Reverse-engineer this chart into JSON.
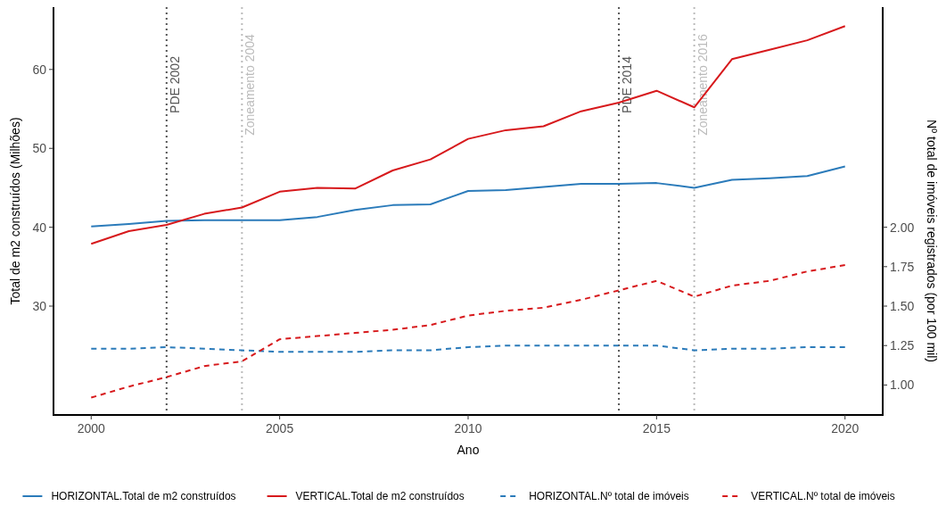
{
  "chart_data": {
    "type": "line",
    "xlabel": "Ano",
    "ylabel": "Total de m2 construídos (Milhões)",
    "y2label": "Nº total de imóveis registrados (por 100 mil)",
    "x": [
      2000,
      2001,
      2002,
      2003,
      2004,
      2005,
      2006,
      2007,
      2008,
      2009,
      2010,
      2011,
      2012,
      2013,
      2014,
      2015,
      2016,
      2017,
      2018,
      2019,
      2020
    ],
    "xlim": [
      1999,
      2021
    ],
    "xticks": [
      2000,
      2005,
      2010,
      2015,
      2020
    ],
    "ylim": [
      16.2,
      67.9
    ],
    "yticks": [
      30,
      40,
      50,
      60
    ],
    "y2lim": [
      0.81,
      3.395
    ],
    "y2ticks": [
      {
        "value": 1,
        "label": "1.00"
      },
      {
        "value": 1.25,
        "label": "1.25"
      },
      {
        "value": 1.5,
        "label": "1.50"
      },
      {
        "value": 1.75,
        "label": "1.75"
      },
      {
        "value": 2,
        "label": "2.00"
      }
    ],
    "series": [
      {
        "name": "HORIZONTAL.Total de m2 construídos",
        "color": "#2b7bba",
        "line_style": "solid",
        "values": [
          40.1,
          40.4,
          40.8,
          40.9,
          40.9,
          40.9,
          41.3,
          42.2,
          42.8,
          42.9,
          44.6,
          44.7,
          45.1,
          45.5,
          45.5,
          45.6,
          45.0,
          46.0,
          46.2,
          46.5,
          47.7
        ]
      },
      {
        "name": "VERTICAL.Total de m2 construídos",
        "color": "#d7191c",
        "line_style": "solid",
        "values": [
          37.9,
          39.5,
          40.3,
          41.7,
          42.5,
          44.5,
          45.0,
          44.9,
          47.2,
          48.6,
          51.2,
          52.3,
          52.8,
          54.7,
          55.8,
          57.3,
          55.2,
          61.3,
          62.5,
          63.7,
          65.5
        ]
      },
      {
        "name": "HORIZONTAL.Nº total de imóveis",
        "color": "#2b7bba",
        "line_style": "dashed",
        "axis": "y2",
        "values": [
          1.23,
          1.23,
          1.24,
          1.23,
          1.22,
          1.21,
          1.21,
          1.21,
          1.22,
          1.22,
          1.24,
          1.25,
          1.25,
          1.25,
          1.25,
          1.25,
          1.22,
          1.23,
          1.23,
          1.24,
          1.24
        ]
      },
      {
        "name": "VERTICAL.Nº total de imóveis",
        "color": "#d7191c",
        "line_style": "dashed",
        "axis": "y2",
        "values": [
          0.92,
          0.99,
          1.05,
          1.12,
          1.15,
          1.29,
          1.31,
          1.33,
          1.35,
          1.38,
          1.44,
          1.47,
          1.49,
          1.54,
          1.6,
          1.66,
          1.56,
          1.63,
          1.66,
          1.72,
          1.76
        ]
      }
    ],
    "ref_lines": [
      {
        "axis": "x",
        "value": 2002,
        "label": "PDE 2002",
        "color": "#555555",
        "line_style": "dotted"
      },
      {
        "axis": "x",
        "value": 2004,
        "label": "Zoneamento 2004",
        "color": "#bbbbbb",
        "line_style": "dotted"
      },
      {
        "axis": "x",
        "value": 2014,
        "label": "PDE 2014",
        "color": "#555555",
        "line_style": "dotted"
      },
      {
        "axis": "x",
        "value": 2016,
        "label": "Zoneamento 2016",
        "color": "#bbbbbb",
        "line_style": "dotted"
      }
    ],
    "grid": false,
    "legend": "bottom"
  }
}
